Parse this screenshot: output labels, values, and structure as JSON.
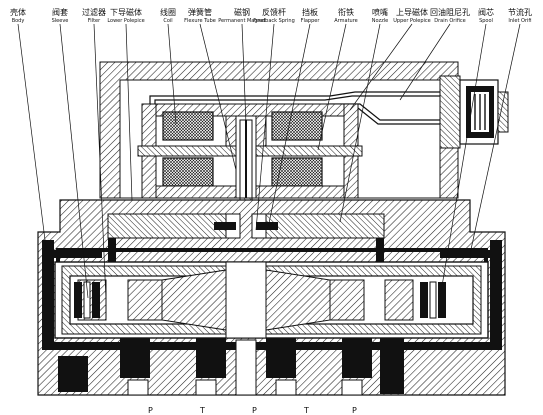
{
  "labels": [
    {
      "cn": "壳体",
      "en": "Body"
    },
    {
      "cn": "阀套",
      "en": "Sleeve"
    },
    {
      "cn": "过滤器",
      "en": "Filter"
    },
    {
      "cn": "下导磁体",
      "en": "Lower Polepice"
    },
    {
      "cn": "线圈",
      "en": "Coil"
    },
    {
      "cn": "弹簧管",
      "en": "Flexure Tube"
    },
    {
      "cn": "磁钢",
      "en": "Permanent Magnet"
    },
    {
      "cn": "反馈杆",
      "en": "Feedback Spring"
    },
    {
      "cn": "挡板",
      "en": "Flapper"
    },
    {
      "cn": "衔铁",
      "en": "Armature"
    },
    {
      "cn": "喷嘴",
      "en": "Nozzle"
    },
    {
      "cn": "上导磁体",
      "en": "Upper Polepice"
    },
    {
      "cn": "回油阻尼孔",
      "en": "Drain Orifice"
    },
    {
      "cn": "阀芯",
      "en": "Spool"
    },
    {
      "cn": "节流孔",
      "en": "Inlet Orifi"
    }
  ],
  "bottom_labels": [
    "P",
    "T",
    "P",
    "T",
    "P"
  ]
}
